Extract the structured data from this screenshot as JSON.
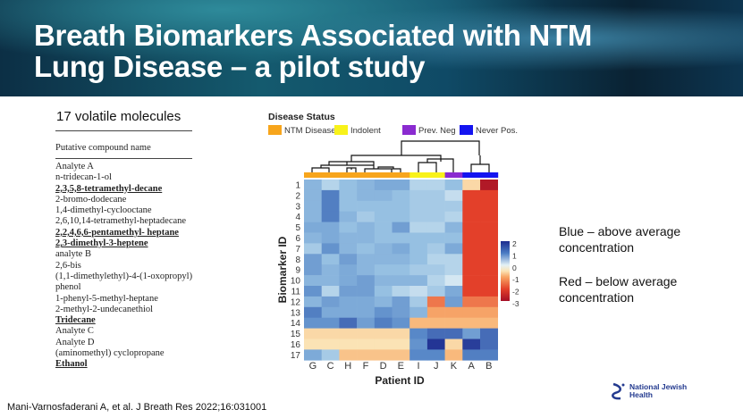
{
  "header": {
    "title_line1": "Breath Biomarkers Associated with NTM",
    "title_line2": "Lung Disease – a pilot study"
  },
  "left": {
    "subtitle": "17 volatile molecules",
    "column_header": "Putative compound name",
    "compounds": [
      {
        "name": "Analyte A",
        "u": false
      },
      {
        "name": "n-tridecan-1-ol",
        "u": false
      },
      {
        "name": "2,3,5,8-tetramethyl-decane",
        "u": true
      },
      {
        "name": "2-bromo-dodecane",
        "u": false
      },
      {
        "name": "1,4-dimethyl-cyclooctane",
        "u": false
      },
      {
        "name": "2,6,10,14-tetramethyl-heptadecane",
        "u": false
      },
      {
        "name": "2,2,4,6,6-pentamethyl- heptane",
        "u": true
      },
      {
        "name": "2,3-dimethyl-3-heptene",
        "u": true
      },
      {
        "name": "analyte B",
        "u": false
      },
      {
        "name": "2,6-bis",
        "u": false
      },
      {
        "name": "(1,1-dimethylethyl)-4-(1-oxopropyl)",
        "u": false
      },
      {
        "name": "phenol",
        "u": false
      },
      {
        "name": "1-phenyl-5-methyl-heptane",
        "u": false
      },
      {
        "name": "2-methyl-2-undecanethiol",
        "u": false
      },
      {
        "name": "Tridecane",
        "u": true
      },
      {
        "name": "Analyte C",
        "u": false
      },
      {
        "name": "Analyte D",
        "u": false
      },
      {
        "name": "(aminomethyl) cyclopropane",
        "u": false
      },
      {
        "name": "Ethanol",
        "u": true
      }
    ]
  },
  "right": {
    "blue_line1": "Blue – above average",
    "blue_line2": "concentration",
    "red_line1": "Red – below average",
    "red_line2": "concentration"
  },
  "citation": "Mani-Varnosfaderani A, et al. J Breath Res 2022;16:031001",
  "logo": {
    "line1": "National Jewish",
    "line2": "Health"
  },
  "chart_data": {
    "type": "heatmap",
    "legend_title": "Disease Status",
    "legend": [
      {
        "label": "NTM Disease",
        "color": "#f7a51c"
      },
      {
        "label": "Indolent",
        "color": "#f8f21a"
      },
      {
        "label": "Prev. Neg",
        "color": "#8a2bd0"
      },
      {
        "label": "Never Pos.",
        "color": "#1414f0"
      }
    ],
    "xlabel": "Patient ID",
    "ylabel": "Biomarker ID",
    "columns": [
      "G",
      "C",
      "H",
      "F",
      "D",
      "E",
      "I",
      "J",
      "K",
      "A",
      "B"
    ],
    "column_status": [
      0,
      0,
      0,
      0,
      0,
      0,
      1,
      1,
      2,
      3,
      3
    ],
    "rows": [
      "1",
      "2",
      "3",
      "4",
      "5",
      "6",
      "7",
      "8",
      "9",
      "10",
      "11",
      "12",
      "13",
      "14",
      "15",
      "16",
      "17"
    ],
    "colorbar_ticks": [
      "2",
      "1",
      "0",
      "-1",
      "-2",
      "-3"
    ],
    "zlim": [
      -3,
      2
    ],
    "values": [
      [
        0.6,
        0.3,
        0.5,
        0.6,
        0.7,
        0.7,
        0.3,
        0.3,
        0.5,
        -0.6,
        -2.8
      ],
      [
        0.6,
        1.1,
        0.5,
        0.6,
        0.6,
        0.5,
        0.4,
        0.4,
        0.2,
        -2,
        -2
      ],
      [
        0.6,
        1.1,
        0.5,
        0.5,
        0.5,
        0.5,
        0.4,
        0.4,
        0.4,
        -2,
        -2
      ],
      [
        0.6,
        1.1,
        0.6,
        0.4,
        0.5,
        0.5,
        0.4,
        0.4,
        0.3,
        -2,
        -2
      ],
      [
        0.7,
        0.7,
        0.5,
        0.6,
        0.5,
        0.8,
        0.3,
        0.3,
        0.6,
        -2,
        -2
      ],
      [
        0.6,
        0.7,
        0.6,
        0.6,
        0.5,
        0.5,
        0.5,
        0.5,
        0.5,
        -2,
        -2
      ],
      [
        0.4,
        0.9,
        0.6,
        0.5,
        0.6,
        0.7,
        0.5,
        0.4,
        0.7,
        -2,
        -2
      ],
      [
        0.8,
        0.5,
        0.8,
        0.6,
        0.6,
        0.6,
        0.5,
        0.3,
        0.3,
        -2,
        -2
      ],
      [
        0.8,
        0.6,
        0.7,
        0.6,
        0.5,
        0.5,
        0.4,
        0.4,
        0.3,
        -2,
        -2
      ],
      [
        0.6,
        0.6,
        0.7,
        0.8,
        0.6,
        0.6,
        0.6,
        0.3,
        0.1,
        -2,
        -2
      ],
      [
        0.9,
        0.3,
        0.8,
        0.8,
        0.5,
        0.3,
        0.2,
        0.4,
        0.7,
        -2,
        -2
      ],
      [
        0.6,
        0.8,
        0.7,
        0.7,
        0.6,
        0.8,
        0.4,
        -1.5,
        0.8,
        -1.5,
        -1.5
      ],
      [
        1.1,
        0.7,
        0.7,
        0.7,
        0.9,
        0.8,
        0.6,
        -1.1,
        -1.1,
        -1.1,
        -1.1
      ],
      [
        0.9,
        0.9,
        1.3,
        0.8,
        1.1,
        0.9,
        -0.9,
        -0.9,
        -0.9,
        -0.9,
        -0.9
      ],
      [
        -0.6,
        -0.6,
        -0.6,
        -0.6,
        -0.6,
        -0.6,
        1.0,
        1.3,
        1.3,
        0.8,
        1.3
      ],
      [
        -0.5,
        -0.5,
        -0.5,
        -0.5,
        -0.5,
        -0.5,
        0.9,
        1.9,
        -0.6,
        1.8,
        1.3
      ],
      [
        0.7,
        0.4,
        -0.8,
        -0.8,
        -0.8,
        -0.8,
        1.0,
        1.0,
        -0.9,
        1.1,
        1.1
      ]
    ]
  }
}
